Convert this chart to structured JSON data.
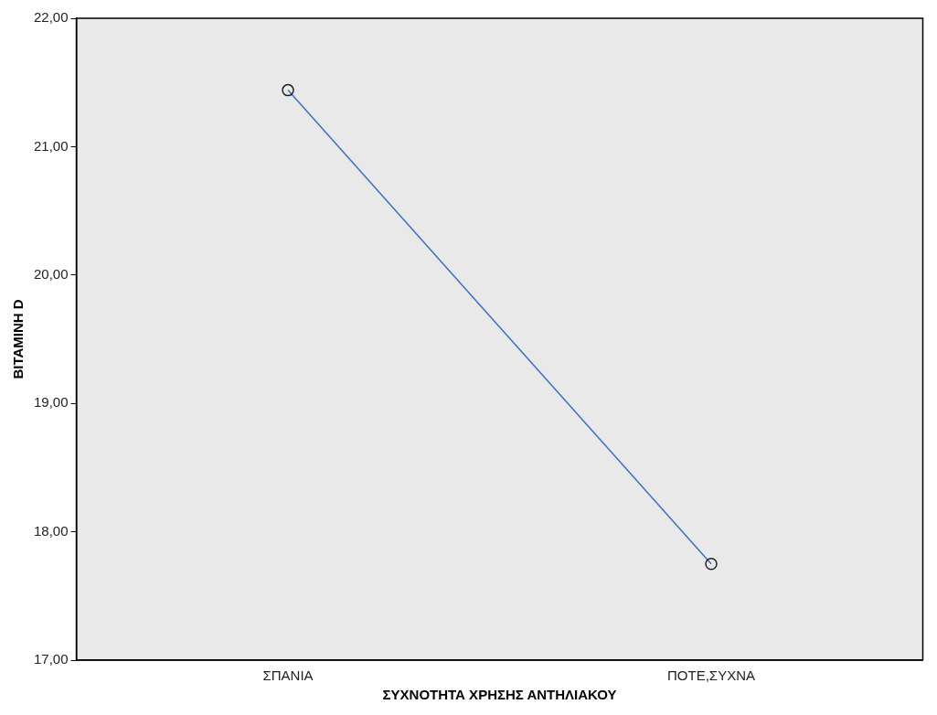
{
  "chart_data": {
    "type": "line",
    "xlabel": "ΣΥΧΝΟΤΗΤΑ ΧΡΗΣΗΣ ΑΝΤΗΛΙΑΚΟΥ",
    "ylabel": "BITAMINH D",
    "categories": [
      "ΣΠΑΝΙΑ",
      "ΠΟΤΕ,ΣΥΧΝΑ"
    ],
    "series": [
      {
        "color": "#3b6fc0",
        "values": [
          21.44,
          17.75
        ]
      }
    ],
    "ylim": [
      17,
      22
    ],
    "yticks": [
      {
        "value": 17,
        "label": "17,00"
      },
      {
        "value": 18,
        "label": "18,00"
      },
      {
        "value": 19,
        "label": "19,00"
      },
      {
        "value": 20,
        "label": "20,00"
      },
      {
        "value": 21,
        "label": "21,00"
      },
      {
        "value": 22,
        "label": "22,00"
      }
    ],
    "grid": false,
    "legend": false,
    "marker": "circle",
    "line_style": "solid"
  }
}
